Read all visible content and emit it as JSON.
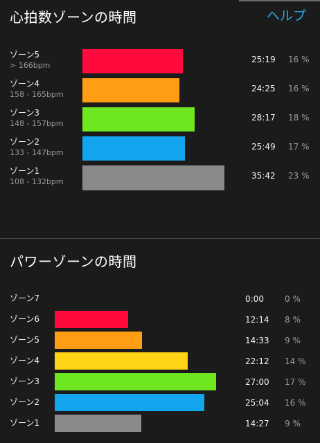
{
  "heart_rate": {
    "title": "心拍数ゾーンの時間",
    "help_label": "ヘルプ",
    "zones": [
      {
        "name": "ゾーン5",
        "range": "> 166bpm",
        "time": "25:19",
        "percent": "16 %",
        "color": "#ff0a3c"
      },
      {
        "name": "ゾーン4",
        "range": "158 - 165bpm",
        "time": "24:25",
        "percent": "16 %",
        "color": "#ff9e12"
      },
      {
        "name": "ゾーン3",
        "range": "148 - 157bpm",
        "time": "28:17",
        "percent": "18 %",
        "color": "#6ee620"
      },
      {
        "name": "ゾーン2",
        "range": "133 - 147bpm",
        "time": "25:49",
        "percent": "17 %",
        "color": "#12a5ee"
      },
      {
        "name": "ゾーン1",
        "range": "108 - 132bpm",
        "time": "35:42",
        "percent": "23 %",
        "color": "#8a8a8a"
      }
    ]
  },
  "power": {
    "title": "パワーゾーンの時間",
    "zones": [
      {
        "name": "ゾーン7",
        "time": "0:00",
        "percent": "0 %",
        "color": "#ff0a3c"
      },
      {
        "name": "ゾーン6",
        "time": "12:14",
        "percent": "8 %",
        "color": "#ff0a3c"
      },
      {
        "name": "ゾーン5",
        "time": "14:33",
        "percent": "9 %",
        "color": "#ff9e12"
      },
      {
        "name": "ゾーン4",
        "time": "22:12",
        "percent": "14 %",
        "color": "#ffd414"
      },
      {
        "name": "ゾーン3",
        "time": "27:00",
        "percent": "17 %",
        "color": "#6ee620"
      },
      {
        "name": "ゾーン2",
        "time": "25:04",
        "percent": "16 %",
        "color": "#12a5ee"
      },
      {
        "name": "ゾーン1",
        "time": "14:27",
        "percent": "9 %",
        "color": "#8a8a8a"
      }
    ]
  }
}
